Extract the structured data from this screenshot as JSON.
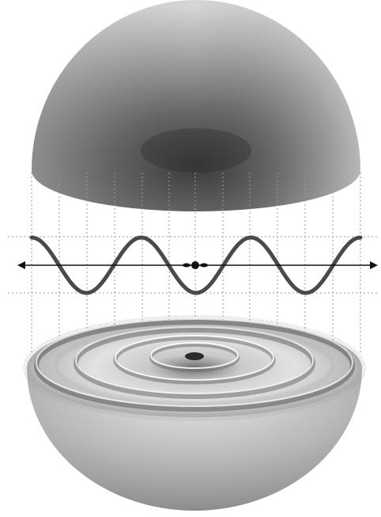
{
  "diagram": {
    "description_labels": [],
    "colors": {
      "background": "#ffffff",
      "shell_light": "#d9d9d9",
      "shell_dark": "#3a3a3a",
      "wave": "#4a4a4a",
      "axis": "#111111",
      "guide": "#9a9a9a",
      "grain": "#6e6e6e"
    },
    "icons": [
      "upper-hemisphere",
      "wave-profile",
      "horizontal-axis-arrow",
      "lower-hemisphere-cross-section"
    ]
  }
}
